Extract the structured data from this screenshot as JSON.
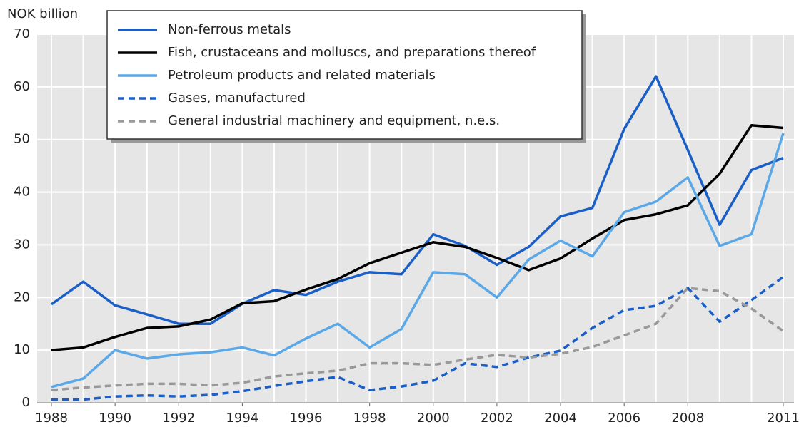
{
  "chart_data": {
    "type": "line",
    "y_label": "NOK billion",
    "x": [
      1988,
      1989,
      1990,
      1991,
      1992,
      1993,
      1994,
      1995,
      1996,
      1997,
      1998,
      1999,
      2000,
      2001,
      2002,
      2003,
      2004,
      2005,
      2006,
      2007,
      2008,
      2009,
      2010,
      2011
    ],
    "xlim": [
      1988,
      2011
    ],
    "xticks": [
      1988,
      1990,
      1992,
      1994,
      1996,
      1998,
      2000,
      2002,
      2004,
      2006,
      2008,
      2011
    ],
    "ylim": [
      0,
      70
    ],
    "yticks": [
      0,
      10,
      20,
      30,
      40,
      50,
      60,
      70
    ],
    "grid": true,
    "legend": "top",
    "series": [
      {
        "name": "Non-ferrous metals",
        "color": "#1a5fc8",
        "style": "solid",
        "values": [
          18.7,
          23,
          18.5,
          16.8,
          15,
          15,
          18.8,
          21.4,
          20.5,
          23,
          24.8,
          24.4,
          32,
          29.8,
          26.2,
          29.6,
          35.4,
          37,
          52,
          62,
          48,
          33.8,
          44.2,
          46.5
        ]
      },
      {
        "name": "Fish, crustaceans and molluscs, and preparations thereof",
        "color": "#000000",
        "style": "solid",
        "values": [
          10,
          10.5,
          12.5,
          14.2,
          14.5,
          15.8,
          18.9,
          19.3,
          21.5,
          23.5,
          26.5,
          28.5,
          30.5,
          29.6,
          27.5,
          25.2,
          27.4,
          31.2,
          34.7,
          35.8,
          37.5,
          43.5,
          52.7,
          52.2
        ]
      },
      {
        "name": "Petroleum products and related materials",
        "color": "#5aa8e8",
        "style": "solid",
        "values": [
          3,
          4.6,
          10,
          8.4,
          9.2,
          9.6,
          10.5,
          9,
          12.2,
          15,
          10.5,
          14,
          24.8,
          24.4,
          20,
          27.2,
          30.8,
          27.8,
          36.2,
          38.2,
          42.8,
          29.8,
          32,
          51.2
        ]
      },
      {
        "name": "Gases, manufactured",
        "color": "#1a5fc8",
        "style": "dashed",
        "values": [
          0.6,
          0.6,
          1.2,
          1.4,
          1.2,
          1.5,
          2.2,
          3.2,
          4.1,
          4.9,
          2.4,
          3.1,
          4.2,
          7.5,
          6.8,
          8.6,
          9.9,
          14.2,
          17.6,
          18.4,
          21.8,
          15.4,
          19.5,
          23.9
        ]
      },
      {
        "name": "General industrial machinery and equipment, n.e.s.",
        "color": "#999999",
        "style": "dashed",
        "values": [
          2.4,
          2.9,
          3.3,
          3.6,
          3.6,
          3.3,
          3.8,
          5,
          5.6,
          6.1,
          7.5,
          7.5,
          7.2,
          8.2,
          9.1,
          8.6,
          9.3,
          10.6,
          12.8,
          15,
          21.8,
          21.2,
          17.9,
          13.6
        ]
      }
    ]
  }
}
